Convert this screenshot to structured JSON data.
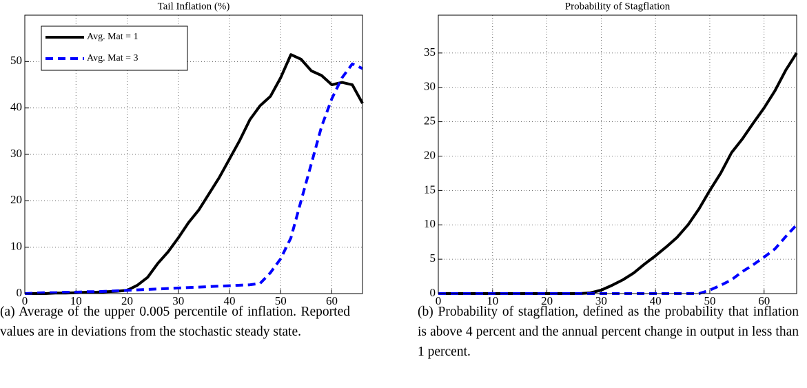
{
  "chart_data": [
    {
      "type": "line",
      "title": "Tail Inflation (%)",
      "caption": "(a) Average of the upper 0.005 percentile of inflation. Reported values are in deviations from the stochastic steady state.",
      "x": [
        0,
        2,
        4,
        6,
        8,
        10,
        12,
        14,
        16,
        18,
        20,
        22,
        24,
        26,
        28,
        30,
        32,
        34,
        36,
        38,
        40,
        42,
        44,
        46,
        48,
        50,
        52,
        54,
        56,
        58,
        60,
        62,
        64,
        66
      ],
      "series": [
        {
          "name": "Avg. Mat = 1",
          "color": "#000000",
          "style": "solid",
          "values": [
            0,
            0,
            0,
            0.1,
            0.1,
            0.2,
            0.3,
            0.3,
            0.4,
            0.5,
            0.7,
            1.8,
            3.5,
            6.5,
            9,
            12,
            15.3,
            18,
            21.5,
            25,
            29,
            33,
            37.5,
            40.5,
            42.5,
            46.5,
            51.5,
            50.5,
            48,
            47,
            45,
            45.5,
            45,
            41
          ]
        },
        {
          "name": "Avg. Mat = 3",
          "color": "#0000ff",
          "style": "dashed",
          "values": [
            0,
            0.1,
            0.2,
            0.2,
            0.3,
            0.3,
            0.4,
            0.4,
            0.5,
            0.6,
            0.7,
            0.8,
            0.9,
            1,
            1.1,
            1.2,
            1.3,
            1.4,
            1.5,
            1.6,
            1.7,
            1.8,
            1.9,
            2.2,
            4.5,
            7.5,
            12,
            20,
            28,
            36,
            42,
            46.5,
            49.5,
            48.5
          ]
        }
      ],
      "xlim": [
        0,
        66
      ],
      "ylim": [
        0,
        60
      ],
      "xticks": [
        0,
        10,
        20,
        30,
        40,
        50,
        60
      ],
      "yticks": [
        0,
        10,
        20,
        30,
        40,
        50
      ],
      "grid": true,
      "legend": "upper left"
    },
    {
      "type": "line",
      "title": "Probability of Stagflation",
      "caption": "(b) Probability of stagflation, defined as the probability that inflation is above 4 percent and the annual percent change in output in less than 1 percent.",
      "x": [
        0,
        2,
        4,
        6,
        8,
        10,
        12,
        14,
        16,
        18,
        20,
        22,
        24,
        26,
        28,
        30,
        32,
        34,
        36,
        38,
        40,
        42,
        44,
        46,
        48,
        50,
        52,
        54,
        56,
        58,
        60,
        62,
        64,
        66
      ],
      "series": [
        {
          "color": "#000000",
          "style": "solid",
          "values": [
            0,
            0,
            0,
            0,
            0,
            0,
            0,
            0,
            0,
            0,
            0,
            0,
            0,
            0,
            0.1,
            0.5,
            1.2,
            2,
            3,
            4.3,
            5.5,
            6.8,
            8.2,
            10,
            12.3,
            15,
            17.5,
            20.5,
            22.5,
            24.8,
            27,
            29.5,
            32.5,
            35
          ]
        },
        {
          "color": "#0000ff",
          "style": "dashed",
          "values": [
            0,
            0,
            0,
            0,
            0,
            0,
            0,
            0,
            0,
            0,
            0,
            0,
            0,
            0,
            0,
            0,
            0,
            0,
            0,
            0,
            0,
            0,
            0,
            0,
            0,
            0.5,
            1.2,
            2,
            3.2,
            4.2,
            5.3,
            6.5,
            8.3,
            10
          ]
        }
      ],
      "xlim": [
        0,
        66
      ],
      "ylim": [
        0,
        40.5
      ],
      "xticks": [
        0,
        10,
        20,
        30,
        40,
        50,
        60
      ],
      "yticks": [
        0,
        5,
        10,
        15,
        20,
        25,
        30,
        35
      ],
      "grid": true
    }
  ]
}
